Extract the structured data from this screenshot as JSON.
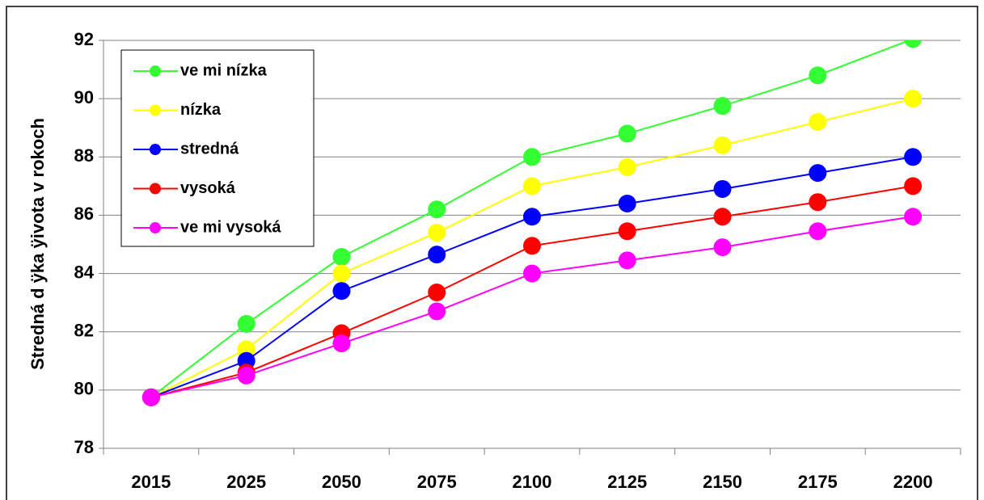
{
  "chart_data": {
    "type": "line",
    "y_label": "Stredná d ÿka ÿivota v rokoch",
    "categories": [
      "2015",
      "2025",
      "2050",
      "2075",
      "2100",
      "2125",
      "2150",
      "2175",
      "2200"
    ],
    "series": [
      {
        "name": "ve mi nízka",
        "color": "#33ff33",
        "values": [
          79.75,
          82.27,
          84.57,
          86.2,
          88.0,
          88.8,
          89.75,
          90.8,
          92.05
        ]
      },
      {
        "name": "nízka",
        "color": "#ffff00",
        "values": [
          79.75,
          81.4,
          84.0,
          85.4,
          87.0,
          87.65,
          88.4,
          89.2,
          90.0
        ]
      },
      {
        "name": "stredná",
        "color": "#0000ff",
        "values": [
          79.75,
          81.0,
          83.4,
          84.65,
          85.95,
          86.4,
          86.9,
          87.45,
          88.0
        ]
      },
      {
        "name": "vysoká",
        "color": "#ff0000",
        "values": [
          79.75,
          80.6,
          81.95,
          83.35,
          84.95,
          85.45,
          85.95,
          86.45,
          87.0
        ]
      },
      {
        "name": "ve mi vysoká",
        "color": "#ff00ff",
        "values": [
          79.75,
          80.5,
          81.6,
          82.7,
          84.0,
          84.45,
          84.9,
          85.45,
          85.95
        ]
      }
    ],
    "ylim": [
      78,
      92
    ],
    "yticks": [
      78,
      80,
      82,
      84,
      86,
      88,
      90,
      92
    ],
    "grid": true,
    "legend": "upper left"
  }
}
